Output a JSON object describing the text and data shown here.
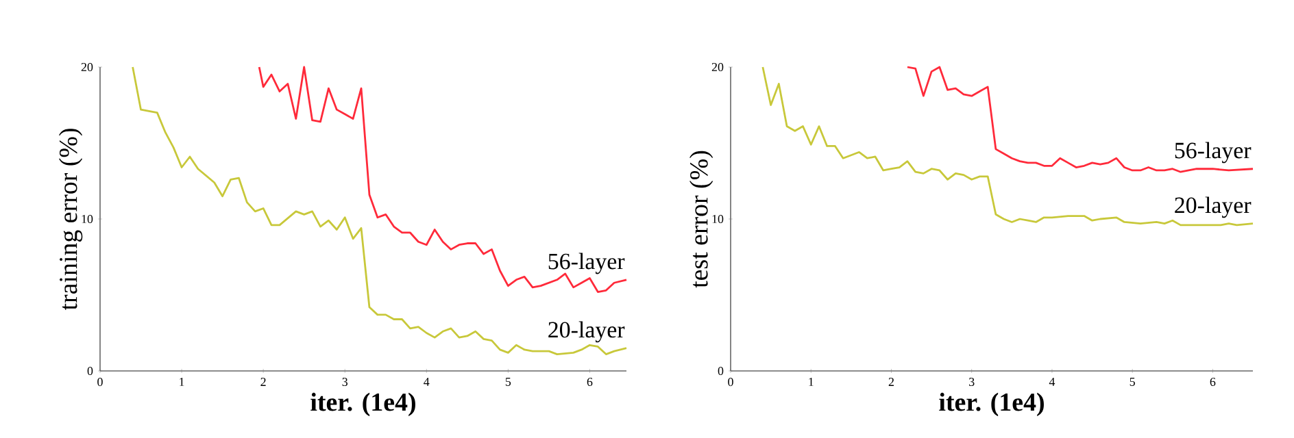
{
  "chart_data": [
    {
      "type": "line",
      "xlabel": "iter. (1e4)",
      "ylabel": "training error (%)",
      "xlim": [
        0,
        6.45
      ],
      "ylim": [
        0,
        20
      ],
      "xticks": [
        0,
        1,
        2,
        3,
        4,
        5,
        6
      ],
      "yticks": [
        0,
        10,
        20
      ],
      "grid": false,
      "legend": false,
      "marker": "none",
      "line_style": "solid",
      "series": [
        {
          "name": "56-layer",
          "color": "#ff2a3a",
          "x": [
            1.95,
            2.0,
            2.1,
            2.2,
            2.3,
            2.4,
            2.5,
            2.6,
            2.7,
            2.8,
            2.9,
            3.0,
            3.1,
            3.2,
            3.3,
            3.4,
            3.5,
            3.6,
            3.7,
            3.8,
            3.9,
            4.0,
            4.1,
            4.2,
            4.3,
            4.4,
            4.5,
            4.6,
            4.7,
            4.8,
            4.9,
            5.0,
            5.1,
            5.2,
            5.3,
            5.4,
            5.6,
            5.7,
            5.8,
            5.9,
            6.0,
            6.1,
            6.2,
            6.3,
            6.45
          ],
          "values": [
            20,
            18.7,
            19.5,
            18.4,
            18.9,
            16.6,
            20,
            16.5,
            16.4,
            18.6,
            17.2,
            16.9,
            16.6,
            18.6,
            11.6,
            10.1,
            10.3,
            9.5,
            9.1,
            9.1,
            8.5,
            8.3,
            9.3,
            8.5,
            8.0,
            8.3,
            8.4,
            8.4,
            7.7,
            8.0,
            6.6,
            5.6,
            6.0,
            6.2,
            5.5,
            5.6,
            6.0,
            6.4,
            5.5,
            5.8,
            6.1,
            5.2,
            5.3,
            5.8,
            6.0
          ]
        },
        {
          "name": "20-layer",
          "color": "#c8c83a",
          "x": [
            0.4,
            0.5,
            0.7,
            0.8,
            0.9,
            1.0,
            1.1,
            1.2,
            1.4,
            1.5,
            1.6,
            1.7,
            1.8,
            1.9,
            2.0,
            2.1,
            2.2,
            2.4,
            2.5,
            2.6,
            2.7,
            2.8,
            2.9,
            3.0,
            3.1,
            3.2,
            3.3,
            3.4,
            3.5,
            3.6,
            3.7,
            3.8,
            3.9,
            4.0,
            4.1,
            4.2,
            4.3,
            4.4,
            4.5,
            4.6,
            4.7,
            4.8,
            4.9,
            5.0,
            5.1,
            5.2,
            5.3,
            5.5,
            5.6,
            5.8,
            5.9,
            6.0,
            6.1,
            6.2,
            6.3,
            6.45
          ],
          "values": [
            20,
            17.2,
            17.0,
            15.7,
            14.7,
            13.4,
            14.1,
            13.3,
            12.4,
            11.5,
            12.6,
            12.7,
            11.1,
            10.5,
            10.7,
            9.6,
            9.6,
            10.5,
            10.3,
            10.5,
            9.5,
            9.9,
            9.3,
            10.1,
            8.7,
            9.4,
            4.2,
            3.7,
            3.7,
            3.4,
            3.4,
            2.8,
            2.9,
            2.5,
            2.2,
            2.6,
            2.8,
            2.2,
            2.3,
            2.6,
            2.1,
            2.0,
            1.4,
            1.2,
            1.7,
            1.4,
            1.3,
            1.3,
            1.1,
            1.2,
            1.4,
            1.7,
            1.6,
            1.1,
            1.3,
            1.5
          ]
        }
      ]
    },
    {
      "type": "line",
      "xlabel": "iter. (1e4)",
      "ylabel": "test error (%)",
      "xlim": [
        0,
        6.5
      ],
      "ylim": [
        0,
        20
      ],
      "xticks": [
        0,
        1,
        2,
        3,
        4,
        5,
        6
      ],
      "yticks": [
        0,
        10,
        20
      ],
      "grid": false,
      "legend": false,
      "marker": "none",
      "line_style": "solid",
      "series": [
        {
          "name": "56-layer",
          "color": "#ff2a3a",
          "x": [
            2.2,
            2.3,
            2.4,
            2.5,
            2.6,
            2.7,
            2.8,
            2.9,
            3.0,
            3.1,
            3.2,
            3.3,
            3.4,
            3.5,
            3.6,
            3.7,
            3.8,
            3.9,
            4.0,
            4.1,
            4.2,
            4.3,
            4.4,
            4.5,
            4.6,
            4.7,
            4.8,
            4.9,
            5.0,
            5.1,
            5.2,
            5.3,
            5.4,
            5.5,
            5.6,
            5.7,
            5.8,
            6.0,
            6.2,
            6.5
          ],
          "values": [
            20,
            19.9,
            18.1,
            19.7,
            20,
            18.5,
            18.6,
            18.2,
            18.1,
            18.4,
            18.7,
            14.6,
            14.3,
            14.0,
            13.8,
            13.7,
            13.7,
            13.5,
            13.5,
            14.0,
            13.7,
            13.4,
            13.5,
            13.7,
            13.6,
            13.7,
            14.0,
            13.4,
            13.2,
            13.2,
            13.4,
            13.2,
            13.2,
            13.3,
            13.1,
            13.2,
            13.3,
            13.3,
            13.2,
            13.3
          ]
        },
        {
          "name": "20-layer",
          "color": "#c8c83a",
          "x": [
            0.4,
            0.5,
            0.6,
            0.7,
            0.8,
            0.9,
            1.0,
            1.1,
            1.2,
            1.3,
            1.4,
            1.5,
            1.6,
            1.7,
            1.8,
            1.9,
            2.0,
            2.1,
            2.2,
            2.3,
            2.4,
            2.5,
            2.6,
            2.7,
            2.8,
            2.9,
            3.0,
            3.1,
            3.2,
            3.3,
            3.4,
            3.5,
            3.6,
            3.7,
            3.8,
            3.9,
            4.0,
            4.2,
            4.4,
            4.5,
            4.6,
            4.8,
            4.9,
            5.1,
            5.3,
            5.4,
            5.5,
            5.6,
            5.8,
            6.0,
            6.1,
            6.2,
            6.3,
            6.5
          ],
          "values": [
            20,
            17.5,
            18.9,
            16.1,
            15.8,
            16.1,
            14.9,
            16.1,
            14.8,
            14.8,
            14.0,
            14.2,
            14.4,
            14.0,
            14.1,
            13.2,
            13.3,
            13.4,
            13.8,
            13.1,
            13.0,
            13.3,
            13.2,
            12.6,
            13.0,
            12.9,
            12.6,
            12.8,
            12.8,
            10.3,
            10.0,
            9.8,
            10.0,
            9.9,
            9.8,
            10.1,
            10.1,
            10.2,
            10.2,
            9.9,
            10.0,
            10.1,
            9.8,
            9.7,
            9.8,
            9.7,
            9.9,
            9.6,
            9.6,
            9.6,
            9.6,
            9.7,
            9.6,
            9.7
          ]
        }
      ]
    }
  ]
}
